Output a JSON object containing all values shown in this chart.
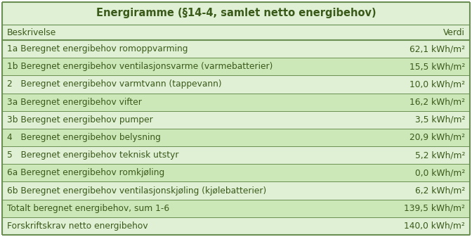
{
  "title": "Energiramme (§14-4, samlet netto energibehov)",
  "header_left": "Beskrivelse",
  "header_right": "Verdi",
  "rows": [
    {
      "label": "1a Beregnet energibehov romoppvarming",
      "value": "62,1 kWh/m²"
    },
    {
      "label": "1b Beregnet energibehov ventilasjonsvarme (varmebatterier)",
      "value": "15,5 kWh/m²"
    },
    {
      "label": "2   Beregnet energibehov varmtvann (tappevann)",
      "value": "10,0 kWh/m²"
    },
    {
      "label": "3a Beregnet energibehov vifter",
      "value": "16,2 kWh/m²"
    },
    {
      "label": "3b Beregnet energibehov pumper",
      "value": "3,5 kWh/m²"
    },
    {
      "label": "4   Beregnet energibehov belysning",
      "value": "20,9 kWh/m²"
    },
    {
      "label": "5   Beregnet energibehov teknisk utstyr",
      "value": "5,2 kWh/m²"
    },
    {
      "label": "6a Beregnet energibehov romkjøling",
      "value": "0,0 kWh/m²"
    },
    {
      "label": "6b Beregnet energibehov ventilasjonskjøling (kjølebatterier)",
      "value": "6,2 kWh/m²"
    },
    {
      "label": "Totalt beregnet energibehov, sum 1-6",
      "value": "139,5 kWh/m²"
    },
    {
      "label": "Forskriftskrav netto energibehov",
      "value": "140,0 kWh/m²"
    }
  ],
  "bg_color_light": "#dff0d4",
  "bg_color_dark": "#cce8b8",
  "bg_color_title": "#dff0d4",
  "border_color": "#6b8f52",
  "text_color": "#3a5a1a",
  "title_fontsize": 10.5,
  "body_fontsize": 8.8,
  "font_family": "DejaVu Sans",
  "fig_width": 6.72,
  "fig_height": 3.37,
  "dpi": 100
}
